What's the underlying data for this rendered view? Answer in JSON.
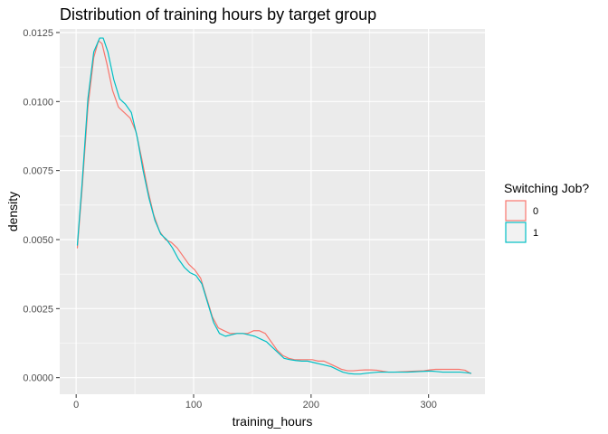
{
  "chart_data": {
    "type": "line",
    "title": "Distribution of training hours by target group",
    "xlabel": "training_hours",
    "ylabel": "density",
    "xlim": [
      -14,
      348
    ],
    "ylim": [
      -0.0006,
      0.01263
    ],
    "x_ticks": [
      0,
      100,
      200,
      300
    ],
    "x_tick_labels": [
      "0",
      "100",
      "200",
      "300"
    ],
    "y_ticks": [
      0,
      0.0025,
      0.005,
      0.0075,
      0.01,
      0.0125
    ],
    "y_tick_labels": [
      "0.0000",
      "0.0025",
      "0.0050",
      "0.0075",
      "0.0100",
      "0.0125"
    ],
    "grid": true,
    "background": "#ebebeb",
    "legend": {
      "title": "Switching Job?",
      "position": "right"
    },
    "series": [
      {
        "name": "0",
        "color": "#F8766D",
        "points": [
          [
            1,
            0.0047
          ],
          [
            5,
            0.0068
          ],
          [
            10,
            0.0098
          ],
          [
            15,
            0.0116
          ],
          [
            19,
            0.0122
          ],
          [
            22,
            0.0121
          ],
          [
            26,
            0.0114
          ],
          [
            31,
            0.0104
          ],
          [
            36,
            0.0098
          ],
          [
            41,
            0.0096
          ],
          [
            46,
            0.0094
          ],
          [
            51,
            0.0089
          ],
          [
            56,
            0.0079
          ],
          [
            61,
            0.0068
          ],
          [
            66,
            0.0059
          ],
          [
            71,
            0.0053
          ],
          [
            76,
            0.005
          ],
          [
            81,
            0.0049
          ],
          [
            86,
            0.0047
          ],
          [
            91,
            0.0044
          ],
          [
            96,
            0.0041
          ],
          [
            101,
            0.0039
          ],
          [
            106,
            0.0036
          ],
          [
            111,
            0.0029
          ],
          [
            116,
            0.0022
          ],
          [
            121,
            0.0018
          ],
          [
            126,
            0.0017
          ],
          [
            131,
            0.0016
          ],
          [
            136,
            0.0016
          ],
          [
            141,
            0.0016
          ],
          [
            146,
            0.0016
          ],
          [
            151,
            0.0017
          ],
          [
            156,
            0.0017
          ],
          [
            161,
            0.0016
          ],
          [
            166,
            0.0013
          ],
          [
            171,
            0.001
          ],
          [
            176,
            0.0008
          ],
          [
            181,
            0.0007
          ],
          [
            186,
            0.00065
          ],
          [
            191,
            0.00065
          ],
          [
            196,
            0.00065
          ],
          [
            201,
            0.00065
          ],
          [
            206,
            0.0006
          ],
          [
            211,
            0.0006
          ],
          [
            216,
            0.0005
          ],
          [
            221,
            0.0004
          ],
          [
            226,
            0.0003
          ],
          [
            231,
            0.00025
          ],
          [
            236,
            0.00025
          ],
          [
            241,
            0.00027
          ],
          [
            246,
            0.00028
          ],
          [
            251,
            0.00028
          ],
          [
            256,
            0.00027
          ],
          [
            261,
            0.00023
          ],
          [
            266,
            0.0002
          ],
          [
            271,
            0.0002
          ],
          [
            276,
            0.00021
          ],
          [
            281,
            0.00022
          ],
          [
            286,
            0.00023
          ],
          [
            291,
            0.00024
          ],
          [
            296,
            0.00025
          ],
          [
            301,
            0.00028
          ],
          [
            306,
            0.0003
          ],
          [
            311,
            0.0003
          ],
          [
            316,
            0.0003
          ],
          [
            321,
            0.0003
          ],
          [
            326,
            0.0003
          ],
          [
            331,
            0.00027
          ],
          [
            336,
            0.00015
          ]
        ]
      },
      {
        "name": "1",
        "color": "#00BFC4",
        "points": [
          [
            1,
            0.0048
          ],
          [
            5,
            0.007
          ],
          [
            10,
            0.0101
          ],
          [
            15,
            0.0118
          ],
          [
            20,
            0.0123
          ],
          [
            23,
            0.0123
          ],
          [
            27,
            0.0118
          ],
          [
            32,
            0.0108
          ],
          [
            37,
            0.0101
          ],
          [
            42,
            0.0099
          ],
          [
            47,
            0.0096
          ],
          [
            52,
            0.0087
          ],
          [
            57,
            0.0075
          ],
          [
            62,
            0.0065
          ],
          [
            67,
            0.0057
          ],
          [
            72,
            0.0052
          ],
          [
            77,
            0.005
          ],
          [
            82,
            0.0047
          ],
          [
            87,
            0.0043
          ],
          [
            92,
            0.004
          ],
          [
            97,
            0.0038
          ],
          [
            102,
            0.0037
          ],
          [
            107,
            0.0034
          ],
          [
            112,
            0.0027
          ],
          [
            117,
            0.002
          ],
          [
            122,
            0.0016
          ],
          [
            127,
            0.0015
          ],
          [
            132,
            0.00155
          ],
          [
            137,
            0.0016
          ],
          [
            142,
            0.0016
          ],
          [
            147,
            0.00155
          ],
          [
            152,
            0.0015
          ],
          [
            157,
            0.0014
          ],
          [
            162,
            0.0013
          ],
          [
            167,
            0.0011
          ],
          [
            172,
            0.0009
          ],
          [
            177,
            0.0007
          ],
          [
            182,
            0.00065
          ],
          [
            187,
            0.00062
          ],
          [
            192,
            0.0006
          ],
          [
            197,
            0.0006
          ],
          [
            202,
            0.00055
          ],
          [
            207,
            0.0005
          ],
          [
            212,
            0.00045
          ],
          [
            217,
            0.0004
          ],
          [
            222,
            0.0003
          ],
          [
            227,
            0.0002
          ],
          [
            232,
            0.00015
          ],
          [
            237,
            0.00013
          ],
          [
            242,
            0.00013
          ],
          [
            247,
            0.00016
          ],
          [
            252,
            0.00018
          ],
          [
            257,
            0.0002
          ],
          [
            262,
            0.0002
          ],
          [
            267,
            0.0002
          ],
          [
            272,
            0.0002
          ],
          [
            277,
            0.0002
          ],
          [
            282,
            0.0002
          ],
          [
            287,
            0.00021
          ],
          [
            292,
            0.00022
          ],
          [
            297,
            0.00023
          ],
          [
            302,
            0.00024
          ],
          [
            307,
            0.00022
          ],
          [
            312,
            0.0002
          ],
          [
            317,
            0.0002
          ],
          [
            322,
            0.0002
          ],
          [
            327,
            0.0002
          ],
          [
            332,
            0.00018
          ],
          [
            336,
            0.00016
          ]
        ]
      }
    ]
  }
}
